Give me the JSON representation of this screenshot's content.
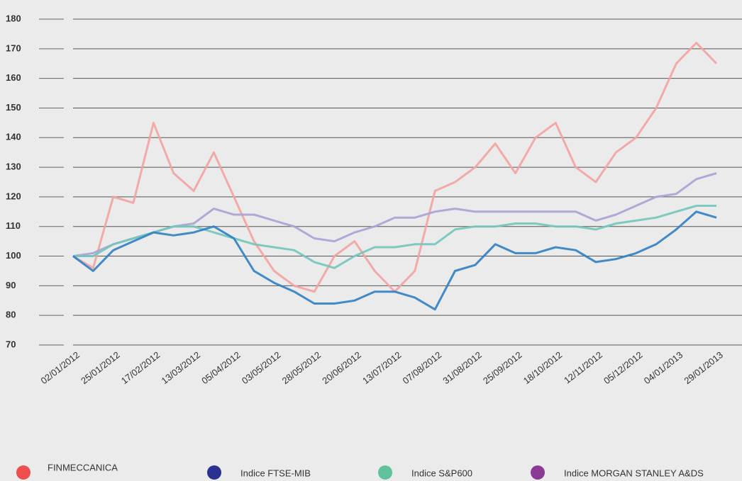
{
  "chart_data": {
    "type": "line",
    "categories": [
      "02/01/2012",
      null,
      "25/01/2012",
      null,
      "17/02/2012",
      null,
      "13/03/2012",
      null,
      "05/04/2012",
      null,
      "03/05/2012",
      null,
      "28/05/2012",
      null,
      "20/06/2012",
      null,
      "13/07/2012",
      null,
      "07/08/2012",
      null,
      "31/08/2012",
      null,
      "25/09/2012",
      null,
      "18/10/2012",
      null,
      "12/11/2012",
      null,
      "05/12/2012",
      null,
      "04/01/2013",
      null,
      "29/01/2013"
    ],
    "series": [
      {
        "name": "FINMECCANICA",
        "color": "#f3a3a0",
        "legend_color": "#ef4e4e",
        "values": [
          100,
          96,
          120,
          118,
          145,
          128,
          122,
          135,
          120,
          105,
          95,
          90,
          88,
          100,
          105,
          95,
          88,
          95,
          122,
          125,
          130,
          138,
          128,
          140,
          145,
          130,
          125,
          135,
          140,
          150,
          165,
          172,
          165
        ]
      },
      {
        "name": "Indice FTSE-MIB",
        "color": "#2f80c3",
        "legend_color": "#2b3190",
        "values": [
          100,
          95,
          102,
          105,
          108,
          107,
          108,
          110,
          106,
          95,
          91,
          88,
          84,
          84,
          85,
          88,
          88,
          86,
          82,
          95,
          97,
          104,
          101,
          101,
          103,
          102,
          98,
          99,
          101,
          104,
          109,
          115,
          113
        ]
      },
      {
        "name": "Indice S&P600",
        "color": "#72c5bb",
        "legend_color": "#5fc29a",
        "values": [
          100,
          100,
          104,
          106,
          108,
          110,
          110,
          108,
          106,
          104,
          103,
          102,
          98,
          96,
          100,
          103,
          103,
          104,
          104,
          109,
          110,
          110,
          111,
          111,
          110,
          110,
          109,
          111,
          112,
          113,
          115,
          117,
          117
        ]
      },
      {
        "name": "Indice MORGAN STANLEY A&DS",
        "color": "#aaa2d6",
        "legend_color": "#8b3a96",
        "values": [
          100,
          101,
          104,
          106,
          108,
          110,
          111,
          116,
          114,
          114,
          112,
          110,
          106,
          105,
          108,
          110,
          113,
          113,
          115,
          116,
          115,
          115,
          115,
          115,
          115,
          115,
          112,
          114,
          117,
          120,
          121,
          126,
          128
        ]
      }
    ],
    "ylim": [
      70,
      180
    ],
    "yticks": [
      70,
      80,
      90,
      100,
      110,
      120,
      130,
      140,
      150,
      160,
      170,
      180
    ],
    "grid": true
  }
}
